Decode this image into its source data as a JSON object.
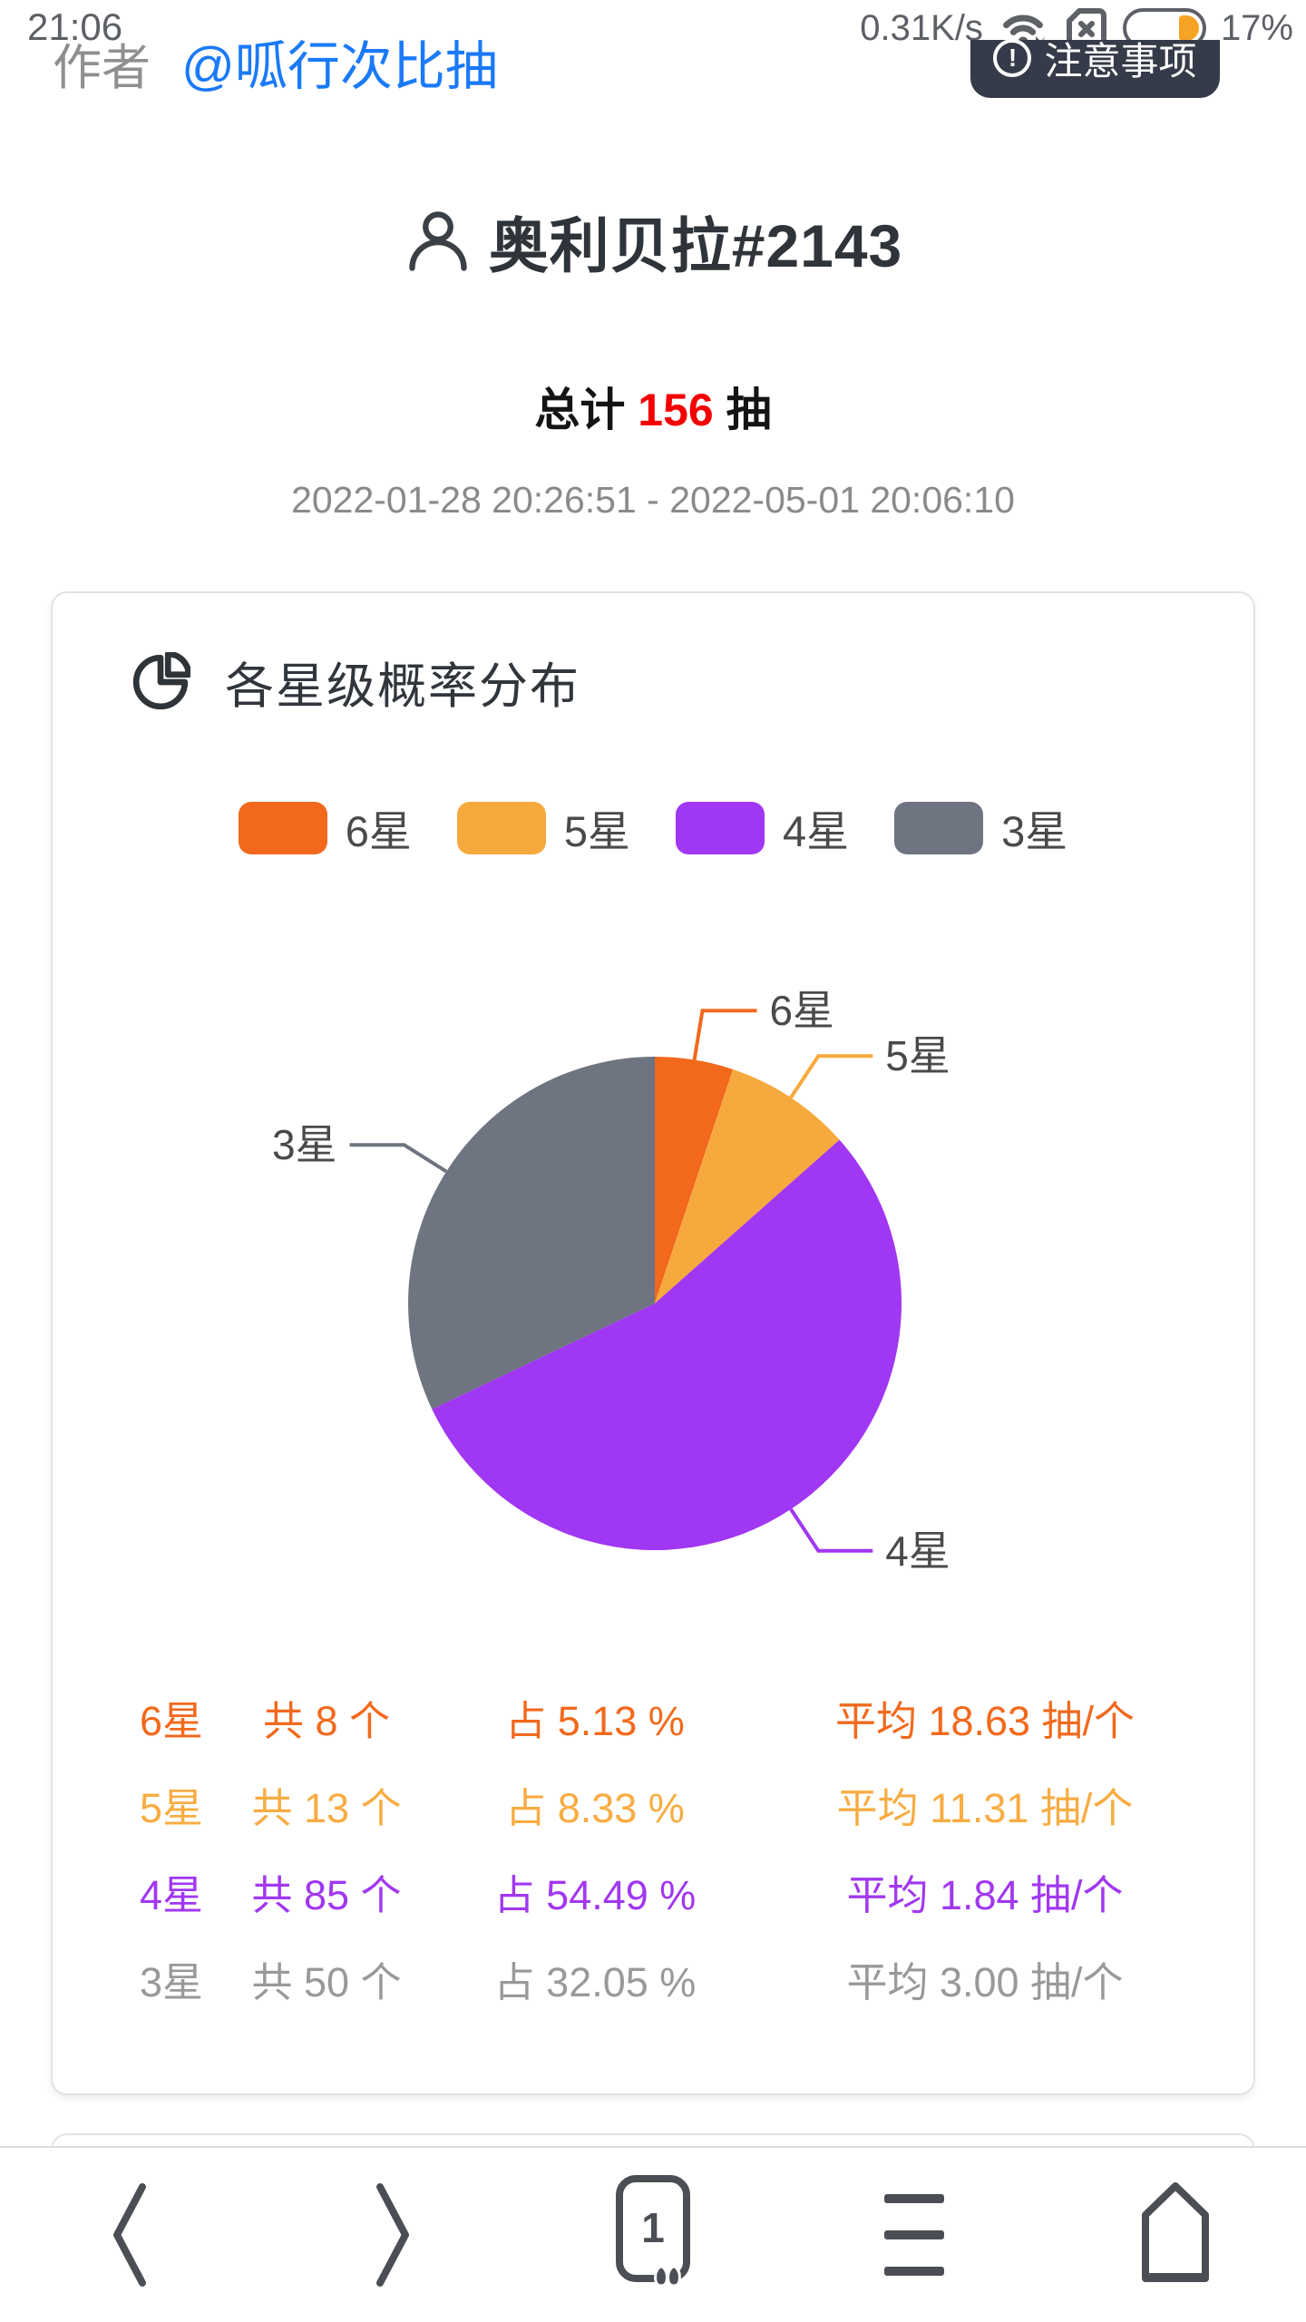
{
  "status_bar": {
    "time": "21:06",
    "net_speed": "0.31K/s",
    "battery_percent": "17%"
  },
  "header": {
    "author_label": "作者",
    "author_link": "@呱行次比抽",
    "notice_button": "注意事项",
    "notice_icon_glyph": "!"
  },
  "profile": {
    "title": "奥利贝拉#2143",
    "total_prefix": "总计 ",
    "total_count": "156",
    "total_suffix": " 抽",
    "date_range": "2022-01-28 20:26:51 - 2022-05-01 20:06:10"
  },
  "card": {
    "title": "各星级概率分布"
  },
  "chart_data": {
    "type": "pie",
    "title": "各星级概率分布",
    "legend_position": "top",
    "start_angle_deg": -90,
    "direction": "clockwise",
    "slices": [
      {
        "label": "6星",
        "value": 5.13,
        "count": 8,
        "color": "#f2691d"
      },
      {
        "label": "5星",
        "value": 8.33,
        "count": 13,
        "color": "#f6a93d"
      },
      {
        "label": "4星",
        "value": 54.49,
        "count": 85,
        "color": "#a037f2"
      },
      {
        "label": "3星",
        "value": 32.05,
        "count": 50,
        "color": "#6e7480"
      }
    ]
  },
  "stats": {
    "rows": [
      {
        "label": "6星",
        "count": "共 8 个",
        "pct": "占 5.13 %",
        "avg": "平均 18.63 抽/个",
        "color": "#f2691d"
      },
      {
        "label": "5星",
        "count": "共 13 个",
        "pct": "占 8.33 %",
        "avg": "平均 11.31 抽/个",
        "color": "#f8ac42"
      },
      {
        "label": "4星",
        "count": "共 85 个",
        "pct": "占 54.49 %",
        "avg": "平均 1.84 抽/个",
        "color": "#a138f0"
      },
      {
        "label": "3星",
        "count": "共 50 个",
        "pct": "占 32.05 %",
        "avg": "平均 3.00 抽/个",
        "color": "#999999"
      }
    ]
  },
  "toolbar": {
    "tab_count": "1"
  },
  "colors": {
    "link_blue": "#1a7af8",
    "total_red": "#f40000",
    "icon_gray": "#4b4f55",
    "status_gray": "#5d6166"
  }
}
